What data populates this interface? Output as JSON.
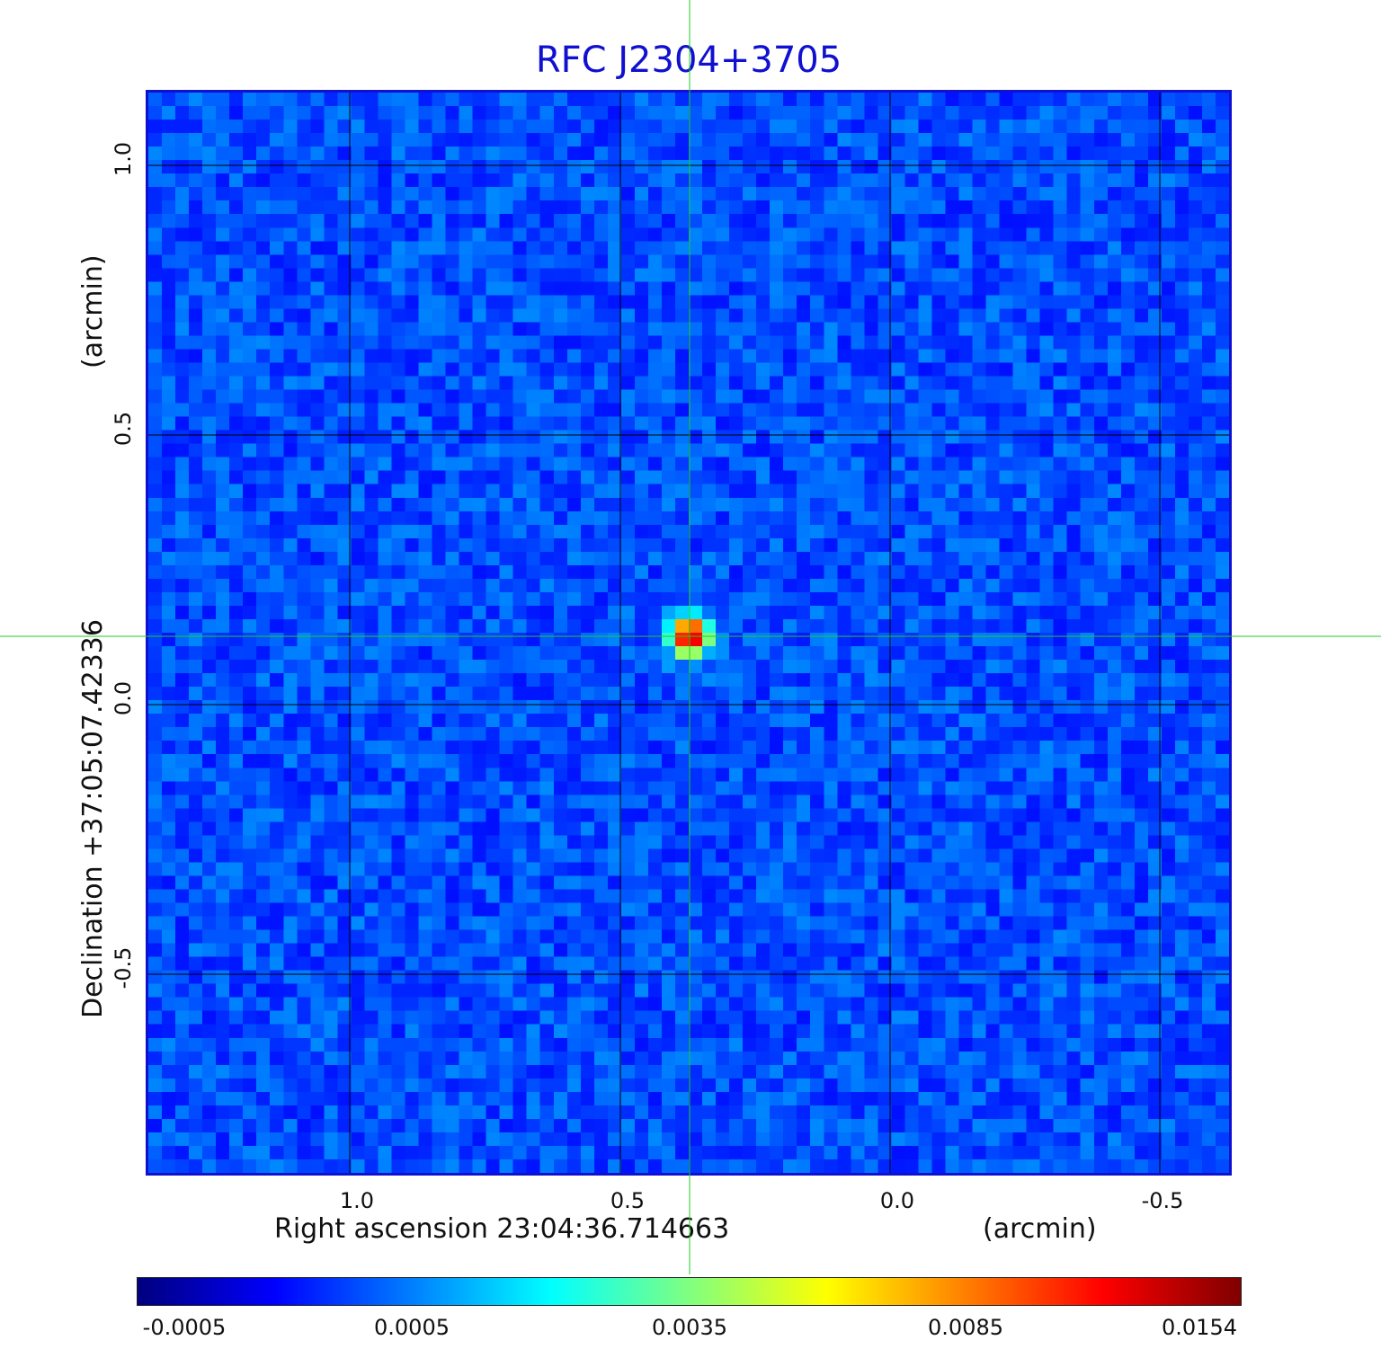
{
  "title": "RFC J2304+3705",
  "axes": {
    "x_tick_labels": [
      "1.0",
      "0.5",
      "0.0",
      "-0.5"
    ],
    "x_label_left": "Right ascension  23:04:36.714663",
    "x_label_right": "(arcmin)",
    "y_tick_labels": [
      "1.0",
      "0.5",
      "0.0",
      "-0.5"
    ],
    "y_label_left": "Declination  +37:05:07.42336",
    "y_label_right": "(arcmin)"
  },
  "colorbar": {
    "tick_labels": [
      "-0.0005",
      "0.0005",
      "0.0035",
      "0.0085",
      "0.0154"
    ],
    "colors": [
      "#00007f",
      "#0000ff",
      "#0080ff",
      "#00ffff",
      "#80ff80",
      "#ffff00",
      "#ff8000",
      "#ff0000",
      "#7f0000"
    ]
  },
  "colors": {
    "frame": "#1010d0",
    "crosshair": "#22cc22",
    "grid": "#000000",
    "background_map": "#2a6cf2"
  }
}
